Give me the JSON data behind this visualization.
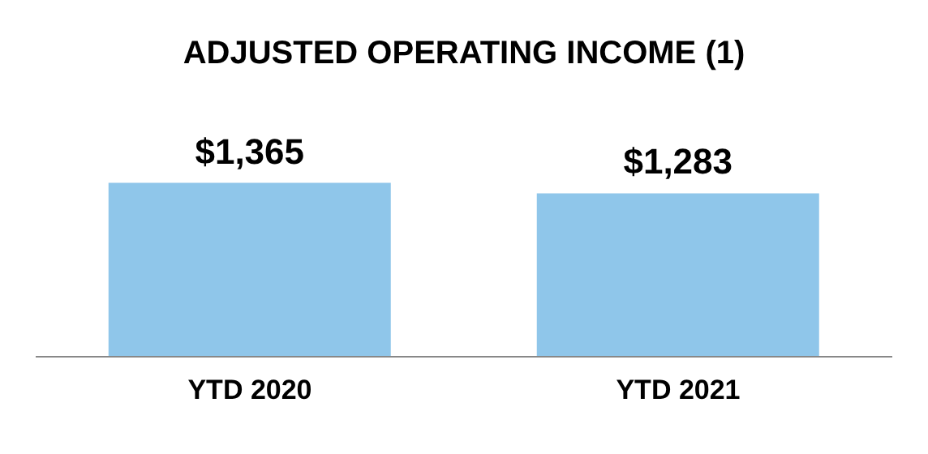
{
  "chart_data": {
    "type": "bar",
    "title": "ADJUSTED OPERATING INCOME (1)",
    "categories": [
      "YTD 2020",
      "YTD 2021"
    ],
    "values": [
      1365,
      1283
    ],
    "value_labels": [
      "$1,365",
      "$1,283"
    ],
    "color": "#8fc6ea"
  }
}
